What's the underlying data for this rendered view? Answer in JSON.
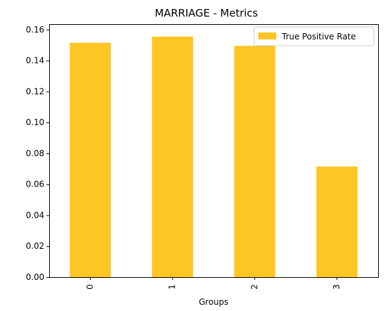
{
  "chart_data": {
    "type": "bar",
    "title": "MARRIAGE - Metrics",
    "xlabel": "Groups",
    "ylabel": "",
    "categories": [
      "0",
      "1",
      "2",
      "3"
    ],
    "series": [
      {
        "name": "True Positive Rate",
        "values": [
          0.1515,
          0.1555,
          0.1495,
          0.0715
        ],
        "color": "#fdc625"
      }
    ],
    "ylim": [
      0,
      0.1635
    ],
    "yticks": [
      "0.00",
      "0.02",
      "0.04",
      "0.06",
      "0.08",
      "0.10",
      "0.12",
      "0.14",
      "0.16"
    ],
    "grid": false,
    "legend_position": "top-right",
    "x_tick_rotation": "vertical"
  }
}
